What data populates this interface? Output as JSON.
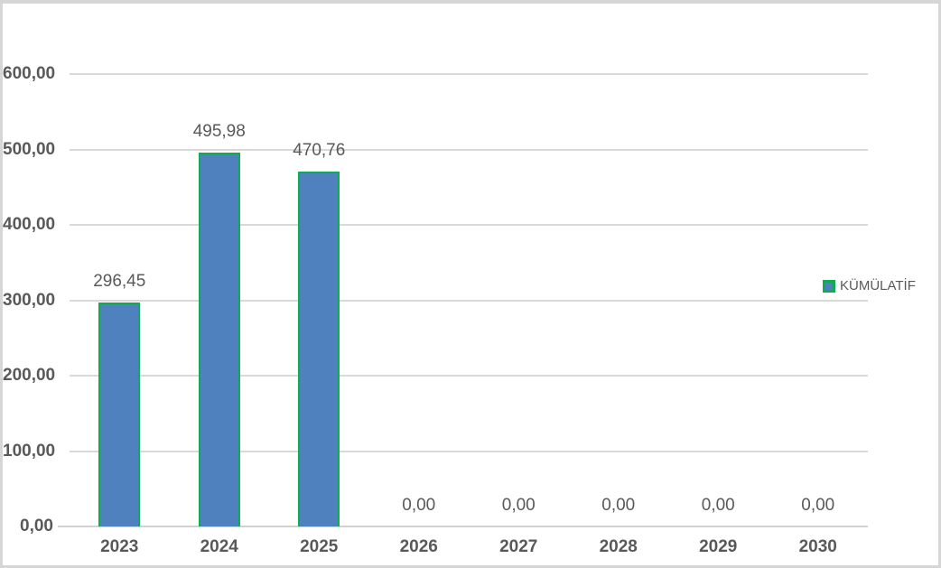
{
  "chart_data": {
    "type": "bar",
    "title": "",
    "xlabel": "",
    "ylabel": "",
    "categories": [
      "2023",
      "2024",
      "2025",
      "2026",
      "2027",
      "2028",
      "2029",
      "2030"
    ],
    "series": [
      {
        "name": "KÜMÜLATİF",
        "values": [
          296.45,
          495.98,
          470.76,
          0,
          0,
          0,
          0,
          0
        ]
      }
    ],
    "data_labels": [
      "296,45",
      "495,98",
      "470,76",
      "0,00",
      "0,00",
      "0,00",
      "0,00",
      "0,00"
    ],
    "y_ticks": [
      "600,00",
      "500,00",
      "400,00",
      "300,00",
      "200,00",
      "100,00",
      "0,00"
    ],
    "ylim": [
      0,
      600
    ],
    "y_step": 100,
    "grid": true,
    "legend": {
      "label": "KÜMÜLATİF",
      "position": "right"
    },
    "colors": {
      "bar_fill": "#4e81bd",
      "bar_border": "#0fac51",
      "gridline": "#d9d9d9",
      "axis_line": "#d2d2d2",
      "text": "#595959",
      "chart_border": "#d6d6d6",
      "background": "#ffffff"
    }
  }
}
